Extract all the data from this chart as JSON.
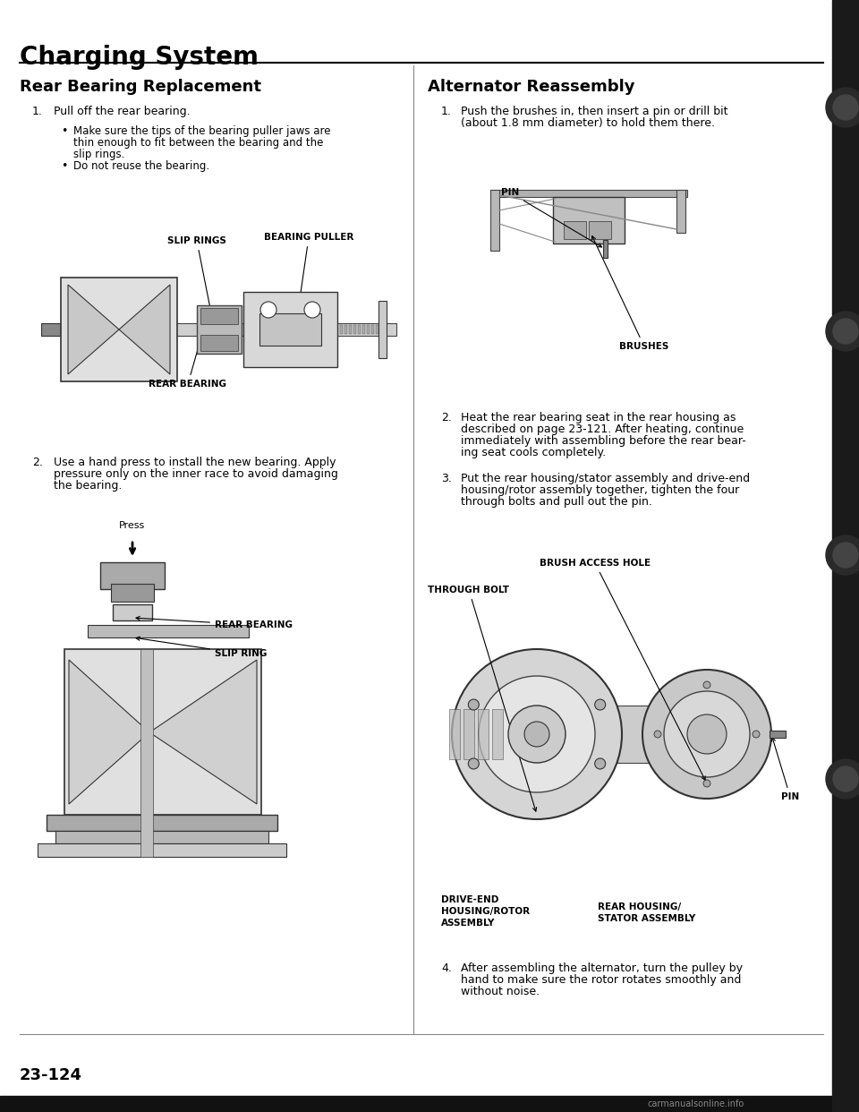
{
  "page_title": "Charging System",
  "page_number": "23-124",
  "watermark": "carmanualsonline.info",
  "left_section_title": "Rear Bearing Replacement",
  "right_section_title": "Alternator Reassembly",
  "bg_color": "#ffffff",
  "text_color": "#000000",
  "title_color": "#000000"
}
